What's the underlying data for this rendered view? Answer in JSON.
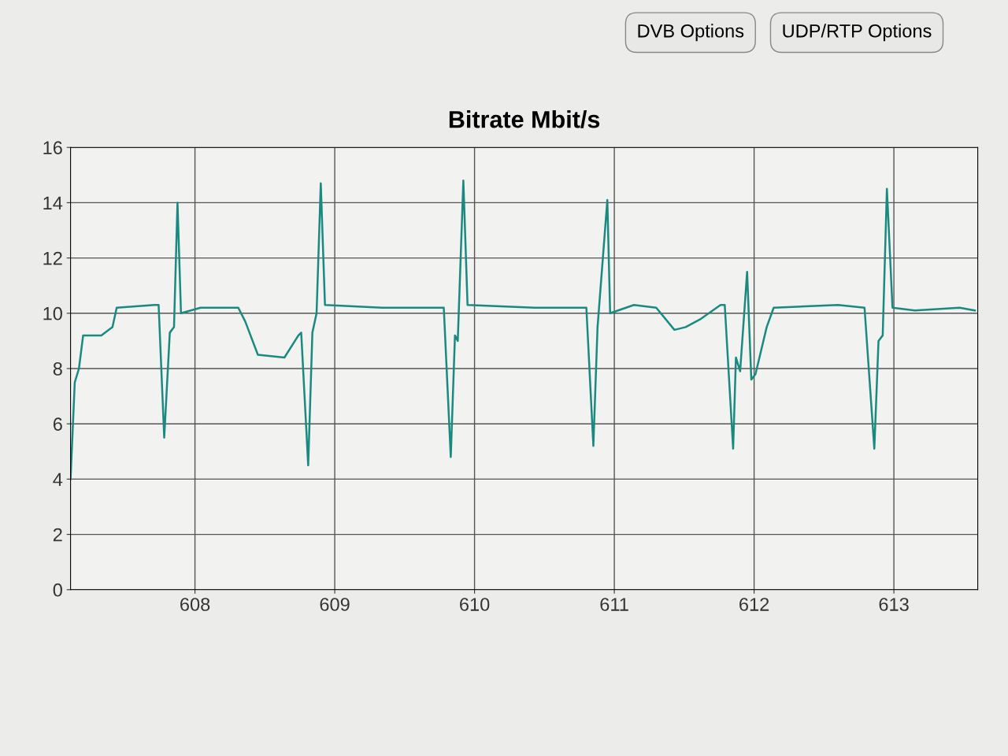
{
  "chart_data": {
    "type": "line",
    "title": "Bitrate Mbit/s",
    "annotations": [
      "DVB Options",
      "UDP/RTP Options"
    ],
    "x": [
      607.11,
      607.14,
      607.17,
      607.2,
      607.33,
      607.41,
      607.44,
      607.71,
      607.74,
      607.78,
      607.82,
      607.85,
      607.875,
      607.9,
      608.04,
      608.31,
      608.36,
      608.45,
      608.64,
      608.74,
      608.76,
      608.81,
      608.84,
      608.87,
      608.9,
      608.93,
      609.34,
      609.78,
      609.83,
      609.86,
      609.88,
      609.92,
      609.95,
      610.43,
      610.8,
      610.85,
      610.88,
      610.95,
      610.97,
      611.14,
      611.3,
      611.43,
      611.51,
      611.62,
      611.76,
      611.79,
      611.85,
      611.87,
      611.9,
      611.95,
      611.98,
      612.01,
      612.09,
      612.14,
      612.6,
      612.79,
      612.86,
      612.89,
      612.92,
      612.95,
      612.99,
      613.15,
      613.47,
      613.58
    ],
    "series": [
      {
        "color": "#1a8a80",
        "values": [
          4,
          7.5,
          8,
          9.2,
          9.2,
          9.5,
          10.2,
          10.3,
          10.3,
          5.5,
          9.3,
          9.5,
          14,
          10,
          10.2,
          10.2,
          9.7,
          8.5,
          8.4,
          9.2,
          9.3,
          4.5,
          9.3,
          10,
          14.7,
          10.3,
          10.2,
          10.2,
          4.8,
          9.2,
          9,
          14.8,
          10.3,
          10.2,
          10.2,
          5.2,
          9.5,
          14.1,
          10,
          10.3,
          10.2,
          9.4,
          9.5,
          9.8,
          10.3,
          10.3,
          5.1,
          8.4,
          7.9,
          11.5,
          7.6,
          7.8,
          9.5,
          10.2,
          10.3,
          10.2,
          5.1,
          9,
          9.2,
          14.5,
          10.2,
          10.1,
          10.2,
          10.1
        ]
      }
    ],
    "xlim": [
      607.11,
      613.6
    ],
    "xticks": [
      608,
      609,
      610,
      611,
      612,
      613
    ],
    "ylim": [
      0,
      16
    ],
    "yticks": [
      0,
      2,
      4,
      6,
      8,
      10,
      12,
      14,
      16
    ],
    "grid": true,
    "marker": "none",
    "line_style": "solid"
  }
}
